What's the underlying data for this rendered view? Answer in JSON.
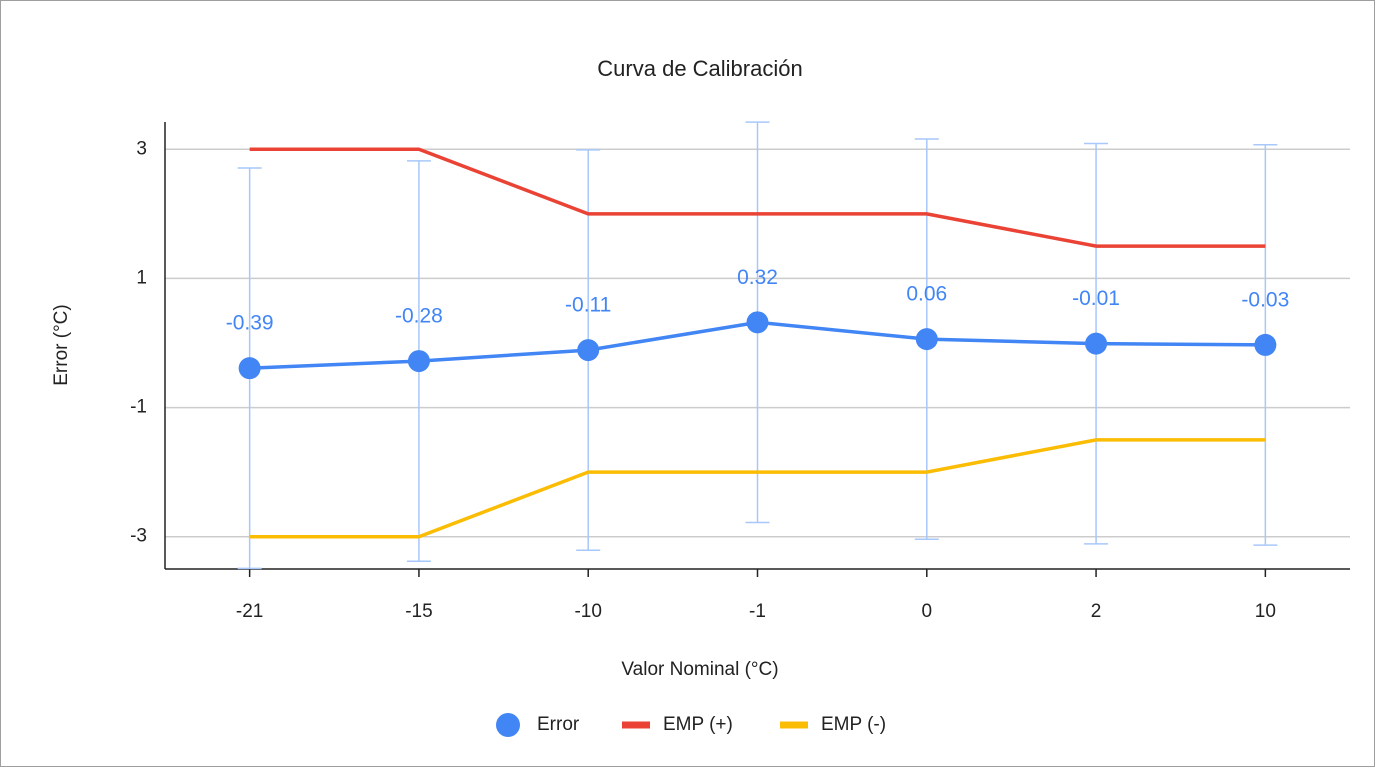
{
  "chart_data": {
    "type": "line",
    "title": "Curva de Calibración",
    "x_label": "Valor Nominal (°C)",
    "y_label": "Error (°C)",
    "categories": [
      "-21",
      "-15",
      "-10",
      "-1",
      "0",
      "2",
      "10"
    ],
    "series": [
      {
        "name": "Error",
        "color": "#4285f4",
        "error_color": "#a8c7fa",
        "markers": true,
        "data_labels": true,
        "values": [
          -0.39,
          -0.28,
          -0.11,
          0.32,
          0.06,
          -0.01,
          -0.03
        ],
        "errors": [
          3.1,
          3.1,
          3.1,
          3.1,
          3.1,
          3.1,
          3.1
        ]
      },
      {
        "name": "EMP (+)",
        "color": "#ea4335",
        "values": [
          3,
          3,
          2,
          2,
          2,
          1.5,
          1.5
        ]
      },
      {
        "name": "EMP (-)",
        "color": "#fbbc04",
        "values": [
          -3,
          -3,
          -2,
          -2,
          -2,
          -1.5,
          -1.5
        ]
      }
    ],
    "ylim": [
      -3.5,
      3.5
    ],
    "yticks": [
      -3,
      -1,
      1,
      3
    ],
    "grid": true,
    "legend": "bottom"
  }
}
